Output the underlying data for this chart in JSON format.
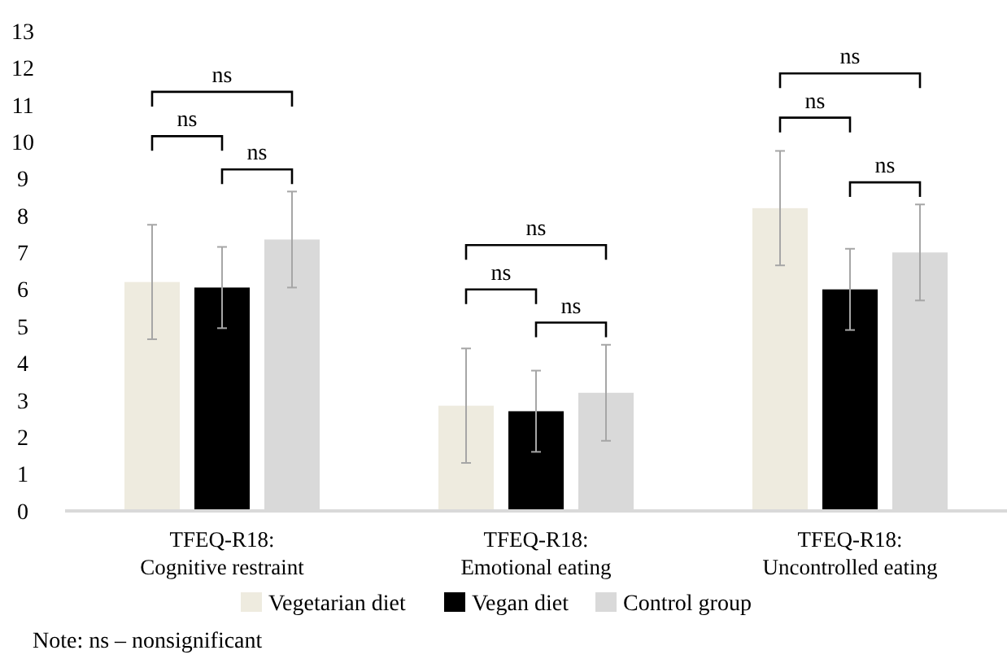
{
  "chart_data": {
    "type": "bar",
    "categories": [
      "TFEQ-R18:\nCognitive restraint",
      "TFEQ-R18:\nEmotional eating",
      "TFEQ-R18:\nUncontrolled eating"
    ],
    "series": [
      {
        "name": "Vegetarian diet",
        "color": "#eeebdf",
        "values": [
          6.2,
          2.85,
          8.2
        ],
        "errors": [
          1.55,
          1.55,
          1.55
        ]
      },
      {
        "name": "Vegan diet",
        "color": "#000000",
        "values": [
          6.05,
          2.7,
          6.0
        ],
        "errors": [
          1.1,
          1.1,
          1.1
        ]
      },
      {
        "name": "Control group",
        "color": "#d9d9d9",
        "values": [
          7.35,
          3.2,
          7.0
        ],
        "errors": [
          1.3,
          1.3,
          1.3
        ]
      }
    ],
    "ylim": [
      0,
      13
    ],
    "yticks": [
      0,
      1,
      2,
      3,
      4,
      5,
      6,
      7,
      8,
      9,
      10,
      11,
      12,
      13
    ],
    "grid": false,
    "legend": "bottom",
    "annotations": [
      "ns",
      "ns",
      "ns",
      "ns",
      "ns",
      "ns",
      "ns",
      "ns",
      "ns",
      "Note: ns – nonsignificant"
    ]
  }
}
